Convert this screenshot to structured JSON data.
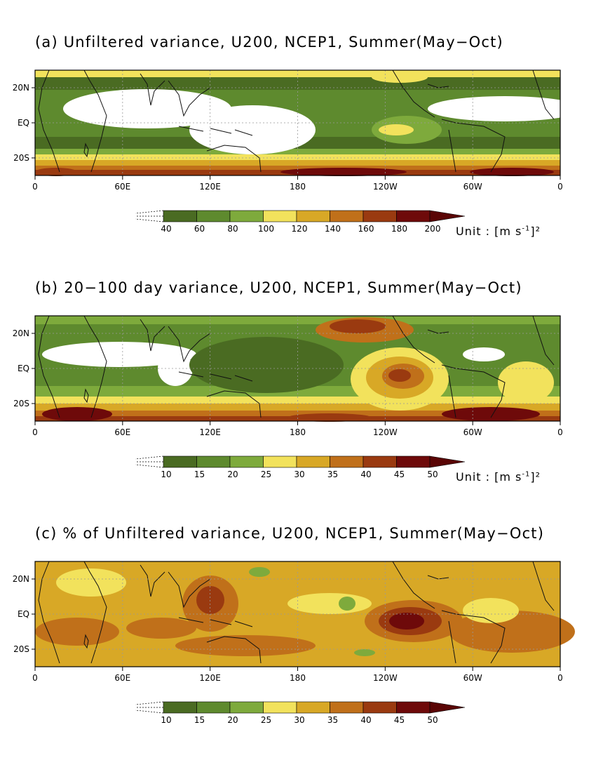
{
  "panels": [
    {
      "id": "a",
      "title": "(a) Unfiltered variance, U200, NCEP1, Summer(May−Oct)",
      "colorbar_labels": [
        "40",
        "60",
        "80",
        "100",
        "120",
        "140",
        "160",
        "180",
        "200"
      ],
      "unit_text": "Unit : [m s",
      "unit_sup": "-1",
      "unit_close": "]²",
      "show_unit": true
    },
    {
      "id": "b",
      "title": "(b) 20−100 day variance, U200, NCEP1, Summer(May−Oct)",
      "colorbar_labels": [
        "10",
        "15",
        "20",
        "25",
        "30",
        "35",
        "40",
        "45",
        "50"
      ],
      "unit_text": "Unit : [m s",
      "unit_sup": "-1",
      "unit_close": "]²",
      "show_unit": true
    },
    {
      "id": "c",
      "title": "(c) % of Unfiltered variance, U200, NCEP1, Summer(May−Oct)",
      "colorbar_labels": [
        "10",
        "15",
        "20",
        "25",
        "30",
        "35",
        "40",
        "45",
        "50"
      ],
      "show_unit": false
    }
  ],
  "x_ticks": [
    "0",
    "60E",
    "120E",
    "180",
    "120W",
    "60W",
    "0"
  ],
  "y_ticks": [
    "20N",
    "EQ",
    "20S"
  ],
  "colors": [
    "#4a6b22",
    "#5e8a2e",
    "#7eaa3c",
    "#f2e25c",
    "#d8a826",
    "#c0701a",
    "#9a3a10",
    "#6e0a0a",
    "#5a0505"
  ]
}
